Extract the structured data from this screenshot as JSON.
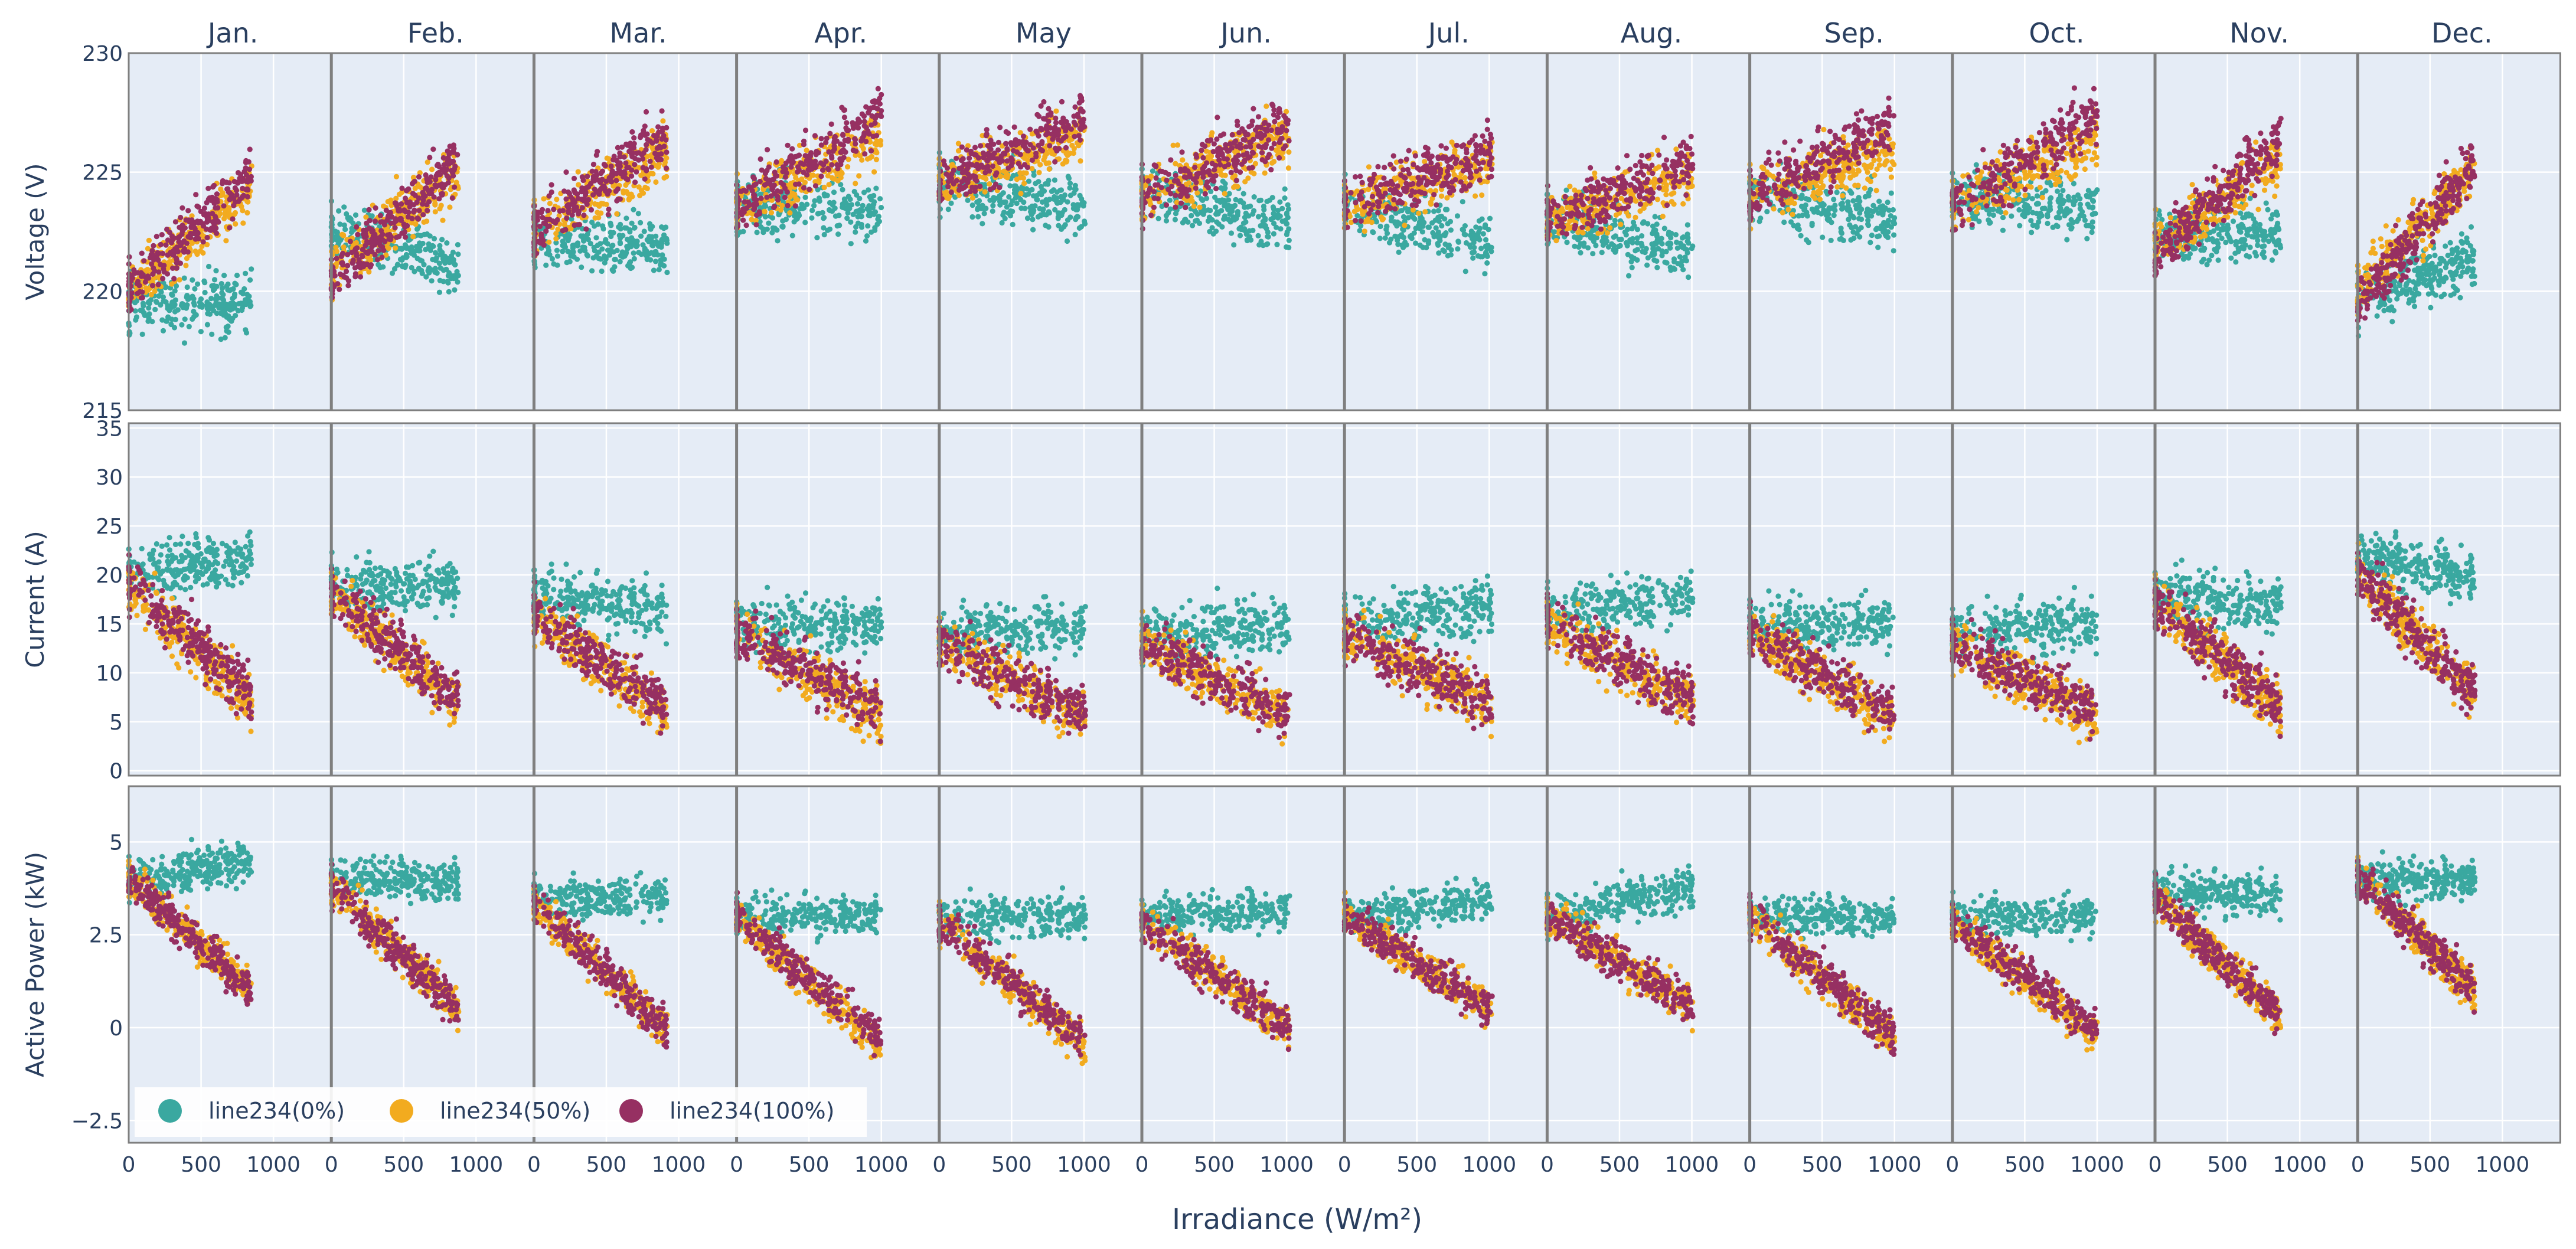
{
  "chart_data": {
    "type": "scatter",
    "months": [
      "Jan.",
      "Feb.",
      "Mar.",
      "Apr.",
      "May",
      "Jun.",
      "Jul.",
      "Aug.",
      "Sep.",
      "Oct.",
      "Nov.",
      "Dec."
    ],
    "xlabel": "Irradiance (W/m²)",
    "x_range": [
      0,
      1400
    ],
    "x_ticks": [
      0,
      500,
      1000
    ],
    "x_tick_labels": [
      "0",
      "500",
      "1000"
    ],
    "rows": [
      {
        "ylabel": "Voltage (V)",
        "ylim": [
          215,
          230
        ],
        "y_ticks": [
          215,
          220,
          225,
          230
        ],
        "y_tick_labels": [
          "215",
          "220",
          "225",
          "230"
        ]
      },
      {
        "ylabel": "Current (A)",
        "ylim": [
          -0.5,
          35.5
        ],
        "y_ticks": [
          0,
          5,
          10,
          15,
          20,
          25,
          30,
          35
        ],
        "y_tick_labels": [
          "0",
          "5",
          "10",
          "15",
          "20",
          "25",
          "30",
          "35"
        ]
      },
      {
        "ylabel": "Active Power (kW)",
        "ylim": [
          -3.1,
          6.5
        ],
        "y_ticks": [
          -2.5,
          0,
          2.5,
          5
        ],
        "y_tick_labels": [
          "−2.5",
          "0",
          "2.5",
          "5"
        ]
      }
    ],
    "series": [
      {
        "name": "line234(0%)",
        "color": "#3aa8a0"
      },
      {
        "name": "line234(50%)",
        "color": "#f2ab1f"
      },
      {
        "name": "line234(100%)",
        "color": "#963062"
      }
    ],
    "legend_position": "bottom-left",
    "max_irradiance": [
      850,
      880,
      920,
      1000,
      1010,
      1020,
      1020,
      1010,
      1000,
      1000,
      870,
      810
    ],
    "scatter_summary": {
      "voltage_V": {
        "line234(0%)": {
          "at_low_irradiance": [
            219.5,
            222.5,
            222.0,
            223.5,
            224.5,
            224.0,
            223.5,
            223.0,
            224.0,
            224.0,
            222.5,
            219.5
          ],
          "at_high_irradiance": [
            219.5,
            221.0,
            222.0,
            223.5,
            223.5,
            223.0,
            222.0,
            221.5,
            223.0,
            223.5,
            222.5,
            221.5
          ]
        },
        "line234(50%)": {
          "at_low_irradiance": [
            220.0,
            221.0,
            222.5,
            223.5,
            224.5,
            224.0,
            223.5,
            223.0,
            224.0,
            223.5,
            222.0,
            220.0
          ],
          "at_high_irradiance": [
            224.5,
            225.0,
            226.0,
            226.5,
            226.5,
            226.5,
            225.5,
            225.0,
            226.0,
            226.5,
            225.5,
            225.0
          ]
        },
        "line234(100%)": {
          "at_low_irradiance": [
            220.0,
            220.5,
            222.5,
            223.5,
            224.5,
            224.0,
            223.5,
            223.0,
            224.0,
            223.5,
            221.5,
            219.5
          ],
          "at_high_irradiance": [
            225.0,
            225.5,
            226.5,
            227.5,
            227.5,
            227.0,
            226.0,
            225.5,
            227.0,
            227.5,
            226.5,
            225.5
          ]
        }
      },
      "current_A": {
        "line234(0%)": {
          "at_low_irradiance": [
            20,
            19,
            18,
            15,
            14,
            14,
            15,
            16,
            15,
            14,
            18,
            22
          ],
          "at_high_irradiance": [
            22,
            19,
            16,
            15,
            15,
            15,
            17,
            18,
            15,
            15,
            17,
            20
          ]
        },
        "line234(50%)": {
          "at_low_irradiance": [
            19,
            18,
            16,
            14,
            13,
            13,
            14,
            15,
            14,
            13,
            17,
            20
          ],
          "at_high_irradiance": [
            7,
            7,
            6,
            5.5,
            5.5,
            5.5,
            6.5,
            7,
            5.5,
            5.5,
            6.5,
            8
          ]
        },
        "line234(100%)": {
          "at_low_irradiance": [
            19,
            18,
            16,
            14,
            13,
            13,
            14,
            15,
            14,
            13,
            17,
            20
          ],
          "at_high_irradiance": [
            8,
            7.5,
            6.5,
            6,
            6,
            6,
            7,
            7.5,
            6,
            6,
            6.5,
            8
          ]
        }
      },
      "active_power_kW": {
        "line234(0%)": {
          "at_low_irradiance": [
            4.0,
            4.0,
            3.5,
            3.0,
            3.0,
            3.0,
            3.0,
            3.0,
            3.0,
            3.0,
            3.7,
            4.0
          ],
          "at_high_irradiance": [
            4.5,
            4.0,
            3.5,
            3.0,
            3.0,
            3.2,
            3.5,
            3.8,
            3.0,
            3.0,
            3.5,
            4.0
          ]
        },
        "line234(50%)": {
          "at_low_irradiance": [
            4.0,
            3.8,
            3.3,
            3.0,
            2.8,
            2.8,
            3.0,
            3.0,
            3.0,
            2.8,
            3.5,
            4.0
          ],
          "at_high_irradiance": [
            1.0,
            0.5,
            0.0,
            -0.5,
            -0.5,
            0.0,
            0.5,
            0.5,
            -0.3,
            -0.2,
            0.3,
            1.0
          ]
        },
        "line234(100%)": {
          "at_low_irradiance": [
            4.0,
            3.8,
            3.3,
            3.0,
            2.8,
            2.8,
            3.0,
            3.0,
            3.0,
            2.8,
            3.5,
            4.0
          ],
          "at_high_irradiance": [
            1.0,
            0.5,
            0.0,
            -0.3,
            -0.4,
            0.0,
            0.5,
            0.6,
            -0.2,
            0.0,
            0.3,
            1.0
          ]
        }
      }
    },
    "spread": {
      "voltage_V": 1.2,
      "current_A": 2.8,
      "active_power_kW": 0.55
    }
  }
}
